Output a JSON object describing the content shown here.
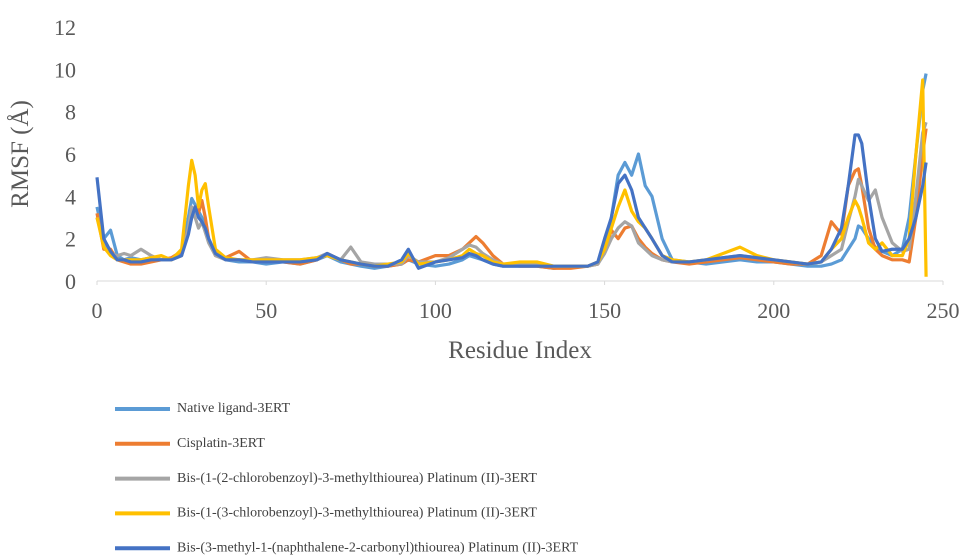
{
  "chart_data": {
    "type": "line",
    "x_label": "Residue Index",
    "y_label": "RMSF (Å)",
    "xlim": [
      0,
      250
    ],
    "xticks": [
      0,
      50,
      100,
      150,
      200,
      250
    ],
    "ylim": [
      0,
      12
    ],
    "yticks": [
      0,
      2,
      4,
      6,
      8,
      10,
      12
    ],
    "grid": false,
    "legend": "bottom",
    "x": [
      0,
      2,
      4,
      6,
      8,
      10,
      13,
      16,
      19,
      22,
      25,
      27,
      28,
      29,
      30,
      31,
      32,
      33,
      35,
      38,
      42,
      46,
      50,
      55,
      60,
      65,
      68,
      72,
      75,
      78,
      82,
      86,
      90,
      92,
      95,
      100,
      104,
      108,
      110,
      112,
      114,
      117,
      120,
      125,
      130,
      135,
      140,
      145,
      148,
      150,
      152,
      154,
      156,
      158,
      160,
      162,
      164,
      167,
      170,
      175,
      180,
      185,
      190,
      195,
      200,
      205,
      210,
      214,
      217,
      220,
      222,
      224,
      225,
      226,
      228,
      230,
      232,
      235,
      238,
      240,
      242,
      244,
      245
    ],
    "series": [
      {
        "name": "Native ligand-3ERT",
        "color": "#5b9bd5",
        "values": [
          3.5,
          2,
          2.4,
          1.2,
          1.0,
          1.1,
          1.0,
          1.1,
          1.0,
          1.0,
          1.3,
          3.0,
          3.9,
          3.6,
          3.3,
          3.0,
          2.6,
          2.0,
          1.3,
          1.0,
          0.9,
          0.9,
          0.8,
          0.9,
          0.8,
          1.0,
          1.2,
          0.9,
          0.8,
          0.7,
          0.6,
          0.7,
          0.8,
          1.0,
          0.8,
          0.7,
          0.8,
          1.0,
          1.2,
          1.1,
          1.0,
          0.8,
          0.7,
          0.7,
          0.7,
          0.6,
          0.7,
          0.7,
          0.8,
          1.5,
          3.0,
          5.0,
          5.6,
          5.0,
          6.0,
          4.5,
          4.0,
          2.0,
          1.0,
          0.9,
          0.8,
          0.9,
          1.0,
          0.9,
          0.9,
          0.8,
          0.7,
          0.7,
          0.8,
          1.0,
          1.5,
          2.0,
          2.6,
          2.5,
          2.0,
          1.6,
          1.4,
          1.2,
          1.5,
          3.0,
          6.0,
          9.0,
          9.8
        ]
      },
      {
        "name": "Cisplatin-3ERT",
        "color": "#ed7d31",
        "values": [
          3.2,
          1.5,
          1.5,
          1.0,
          0.9,
          0.8,
          0.8,
          0.9,
          1.0,
          1.1,
          1.4,
          2.5,
          3.0,
          3.5,
          3.2,
          3.8,
          3.0,
          2.0,
          1.2,
          1.1,
          1.4,
          0.9,
          0.9,
          0.9,
          0.8,
          1.0,
          1.3,
          1.0,
          0.8,
          0.8,
          0.7,
          0.7,
          0.8,
          1.0,
          0.9,
          1.2,
          1.2,
          1.5,
          1.8,
          2.1,
          1.8,
          1.2,
          0.8,
          0.7,
          0.7,
          0.6,
          0.6,
          0.7,
          0.8,
          1.4,
          2.4,
          2.0,
          2.5,
          2.6,
          2.0,
          1.6,
          1.3,
          1.0,
          0.9,
          0.8,
          0.9,
          1.0,
          1.1,
          1.0,
          0.9,
          0.8,
          0.8,
          1.2,
          2.8,
          2.2,
          4.5,
          5.2,
          5.3,
          4.5,
          2.5,
          1.5,
          1.2,
          1.0,
          1.0,
          0.9,
          3.0,
          6.0,
          7.2
        ]
      },
      {
        "name": "Bis-(1-(2-chlorobenzoyl)-3-methylthiourea) Platinum (II)-3ERT",
        "color": "#a5a5a5",
        "values": [
          3.0,
          1.8,
          1.3,
          1.2,
          1.3,
          1.2,
          1.5,
          1.2,
          1.0,
          1.0,
          1.2,
          2.5,
          3.5,
          3.0,
          2.5,
          2.8,
          2.3,
          1.8,
          1.2,
          1.0,
          1.0,
          1.0,
          1.1,
          1.0,
          1.0,
          1.1,
          1.3,
          1.0,
          1.6,
          0.9,
          0.8,
          0.8,
          0.8,
          1.2,
          0.9,
          0.9,
          1.1,
          1.5,
          1.7,
          1.6,
          1.3,
          1.0,
          0.8,
          0.8,
          0.8,
          0.7,
          0.7,
          0.7,
          0.8,
          1.3,
          2.0,
          2.5,
          2.8,
          2.6,
          1.8,
          1.5,
          1.2,
          1.0,
          0.9,
          0.9,
          1.0,
          1.1,
          1.2,
          1.1,
          1.0,
          0.9,
          0.8,
          0.9,
          1.2,
          1.5,
          2.8,
          4.0,
          4.8,
          4.5,
          3.8,
          4.3,
          3.0,
          1.8,
          1.4,
          1.5,
          4.0,
          7.0,
          7.5
        ]
      },
      {
        "name": "Bis-(1-(3-chlorobenzoyl)-3-methylthiourea) Platinum (II)-3ERT",
        "color": "#ffc000",
        "values": [
          3.0,
          1.6,
          1.2,
          1.0,
          1.0,
          1.0,
          1.0,
          1.1,
          1.2,
          1.0,
          1.5,
          4.5,
          5.7,
          5.0,
          3.5,
          4.3,
          4.6,
          3.5,
          1.5,
          1.1,
          1.0,
          1.0,
          1.0,
          1.0,
          1.0,
          1.1,
          1.2,
          1.0,
          0.9,
          0.8,
          0.7,
          0.8,
          0.9,
          1.3,
          0.8,
          0.9,
          1.0,
          1.2,
          1.5,
          1.3,
          1.2,
          0.9,
          0.8,
          0.9,
          0.9,
          0.7,
          0.7,
          0.7,
          0.9,
          1.5,
          2.5,
          3.5,
          4.3,
          3.3,
          2.8,
          2.5,
          2.0,
          1.2,
          1.0,
          0.9,
          1.0,
          1.3,
          1.6,
          1.2,
          1.0,
          0.9,
          0.8,
          0.9,
          1.5,
          2.0,
          3.0,
          3.8,
          3.5,
          3.0,
          1.8,
          1.5,
          1.8,
          1.2,
          1.2,
          2.0,
          6.0,
          9.5,
          0.2
        ]
      },
      {
        "name": "Bis-(3-methyl-1-(naphthalene-2-carbonyl)thiourea) Platinum (II)-3ERT",
        "color": "#4472c4",
        "values": [
          4.9,
          2.0,
          1.4,
          1.0,
          1.0,
          0.9,
          0.9,
          1.0,
          1.0,
          1.0,
          1.2,
          2.2,
          3.0,
          3.5,
          3.0,
          2.8,
          2.5,
          2.0,
          1.3,
          1.0,
          1.0,
          0.9,
          0.9,
          0.9,
          0.9,
          1.0,
          1.3,
          1.0,
          0.9,
          0.8,
          0.7,
          0.7,
          1.0,
          1.5,
          0.6,
          0.9,
          1.0,
          1.1,
          1.3,
          1.2,
          1.0,
          0.8,
          0.7,
          0.7,
          0.7,
          0.7,
          0.7,
          0.7,
          0.9,
          2.0,
          3.0,
          4.6,
          5.0,
          4.3,
          3.0,
          2.5,
          2.0,
          1.2,
          0.9,
          0.9,
          1.0,
          1.1,
          1.2,
          1.1,
          1.0,
          0.9,
          0.8,
          0.9,
          1.5,
          2.5,
          4.5,
          6.9,
          6.9,
          6.5,
          4.0,
          2.0,
          1.4,
          1.5,
          1.5,
          2.0,
          3.0,
          4.5,
          5.6
        ]
      }
    ]
  }
}
